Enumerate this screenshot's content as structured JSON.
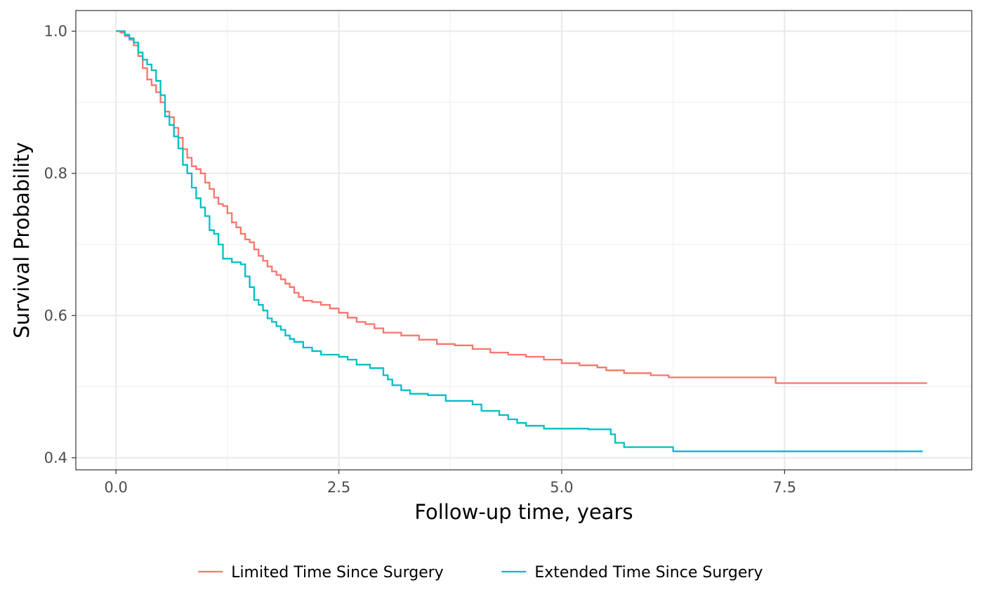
{
  "chart_data": {
    "type": "line",
    "step": true,
    "title": "",
    "xlabel": "Follow-up time, years",
    "ylabel": "Survival Probability",
    "xlim": [
      -0.45,
      9.6
    ],
    "ylim": [
      0.383,
      1.029
    ],
    "xticks": [
      0.0,
      2.5,
      5.0,
      7.5
    ],
    "xtick_labels": [
      "0.0",
      "2.5",
      "5.0",
      "7.5"
    ],
    "yticks": [
      0.4,
      0.6,
      0.8,
      1.0
    ],
    "ytick_labels": [
      "0.4",
      "0.6",
      "0.8",
      "1.0"
    ],
    "grid": true,
    "legend_position": "bottom",
    "series": [
      {
        "name": "Limited Time Since Surgery",
        "color": "#F8766D",
        "points": [
          [
            0.0,
            1.0
          ],
          [
            0.05,
            0.998
          ],
          [
            0.1,
            0.993
          ],
          [
            0.15,
            0.988
          ],
          [
            0.2,
            0.98
          ],
          [
            0.25,
            0.965
          ],
          [
            0.3,
            0.948
          ],
          [
            0.35,
            0.932
          ],
          [
            0.4,
            0.924
          ],
          [
            0.45,
            0.914
          ],
          [
            0.5,
            0.9
          ],
          [
            0.55,
            0.887
          ],
          [
            0.6,
            0.879
          ],
          [
            0.65,
            0.864
          ],
          [
            0.7,
            0.85
          ],
          [
            0.75,
            0.834
          ],
          [
            0.8,
            0.822
          ],
          [
            0.85,
            0.81
          ],
          [
            0.9,
            0.806
          ],
          [
            0.95,
            0.8
          ],
          [
            1.0,
            0.787
          ],
          [
            1.05,
            0.778
          ],
          [
            1.1,
            0.766
          ],
          [
            1.15,
            0.757
          ],
          [
            1.2,
            0.754
          ],
          [
            1.25,
            0.744
          ],
          [
            1.3,
            0.731
          ],
          [
            1.35,
            0.724
          ],
          [
            1.4,
            0.715
          ],
          [
            1.45,
            0.707
          ],
          [
            1.5,
            0.703
          ],
          [
            1.55,
            0.693
          ],
          [
            1.6,
            0.684
          ],
          [
            1.65,
            0.677
          ],
          [
            1.7,
            0.669
          ],
          [
            1.75,
            0.662
          ],
          [
            1.8,
            0.657
          ],
          [
            1.85,
            0.651
          ],
          [
            1.9,
            0.645
          ],
          [
            1.95,
            0.64
          ],
          [
            2.0,
            0.632
          ],
          [
            2.05,
            0.626
          ],
          [
            2.1,
            0.621
          ],
          [
            2.2,
            0.619
          ],
          [
            2.3,
            0.615
          ],
          [
            2.4,
            0.61
          ],
          [
            2.5,
            0.604
          ],
          [
            2.6,
            0.597
          ],
          [
            2.7,
            0.591
          ],
          [
            2.8,
            0.588
          ],
          [
            2.9,
            0.582
          ],
          [
            3.0,
            0.576
          ],
          [
            3.2,
            0.572
          ],
          [
            3.4,
            0.566
          ],
          [
            3.6,
            0.56
          ],
          [
            3.8,
            0.558
          ],
          [
            4.0,
            0.553
          ],
          [
            4.2,
            0.548
          ],
          [
            4.4,
            0.545
          ],
          [
            4.6,
            0.542
          ],
          [
            4.8,
            0.538
          ],
          [
            5.0,
            0.533
          ],
          [
            5.2,
            0.53
          ],
          [
            5.4,
            0.527
          ],
          [
            5.5,
            0.523
          ],
          [
            5.7,
            0.519
          ],
          [
            6.0,
            0.516
          ],
          [
            6.2,
            0.513
          ],
          [
            7.4,
            0.505
          ],
          [
            9.1,
            0.505
          ]
        ]
      },
      {
        "name": "Extended Time Since Surgery",
        "color": "#00BFC4",
        "points": [
          [
            0.0,
            1.0
          ],
          [
            0.05,
            1.0
          ],
          [
            0.1,
            0.995
          ],
          [
            0.15,
            0.99
          ],
          [
            0.2,
            0.984
          ],
          [
            0.25,
            0.97
          ],
          [
            0.3,
            0.96
          ],
          [
            0.35,
            0.953
          ],
          [
            0.4,
            0.945
          ],
          [
            0.45,
            0.93
          ],
          [
            0.5,
            0.91
          ],
          [
            0.55,
            0.88
          ],
          [
            0.6,
            0.868
          ],
          [
            0.65,
            0.852
          ],
          [
            0.7,
            0.835
          ],
          [
            0.75,
            0.812
          ],
          [
            0.8,
            0.8
          ],
          [
            0.85,
            0.78
          ],
          [
            0.9,
            0.765
          ],
          [
            0.95,
            0.752
          ],
          [
            1.0,
            0.74
          ],
          [
            1.05,
            0.72
          ],
          [
            1.1,
            0.715
          ],
          [
            1.15,
            0.7
          ],
          [
            1.2,
            0.68
          ],
          [
            1.3,
            0.675
          ],
          [
            1.4,
            0.672
          ],
          [
            1.45,
            0.655
          ],
          [
            1.5,
            0.64
          ],
          [
            1.55,
            0.622
          ],
          [
            1.6,
            0.615
          ],
          [
            1.65,
            0.607
          ],
          [
            1.7,
            0.596
          ],
          [
            1.75,
            0.591
          ],
          [
            1.8,
            0.585
          ],
          [
            1.85,
            0.58
          ],
          [
            1.9,
            0.572
          ],
          [
            1.95,
            0.567
          ],
          [
            2.0,
            0.563
          ],
          [
            2.1,
            0.555
          ],
          [
            2.2,
            0.55
          ],
          [
            2.3,
            0.545
          ],
          [
            2.5,
            0.542
          ],
          [
            2.6,
            0.538
          ],
          [
            2.7,
            0.531
          ],
          [
            2.85,
            0.526
          ],
          [
            3.0,
            0.516
          ],
          [
            3.05,
            0.51
          ],
          [
            3.1,
            0.502
          ],
          [
            3.2,
            0.495
          ],
          [
            3.3,
            0.49
          ],
          [
            3.5,
            0.488
          ],
          [
            3.7,
            0.48
          ],
          [
            4.0,
            0.475
          ],
          [
            4.1,
            0.466
          ],
          [
            4.3,
            0.46
          ],
          [
            4.4,
            0.454
          ],
          [
            4.5,
            0.449
          ],
          [
            4.6,
            0.445
          ],
          [
            4.8,
            0.441
          ],
          [
            5.3,
            0.44
          ],
          [
            5.55,
            0.433
          ],
          [
            5.6,
            0.421
          ],
          [
            5.7,
            0.415
          ],
          [
            6.1,
            0.415
          ],
          [
            6.25,
            0.409
          ],
          [
            9.05,
            0.409
          ]
        ]
      }
    ]
  }
}
